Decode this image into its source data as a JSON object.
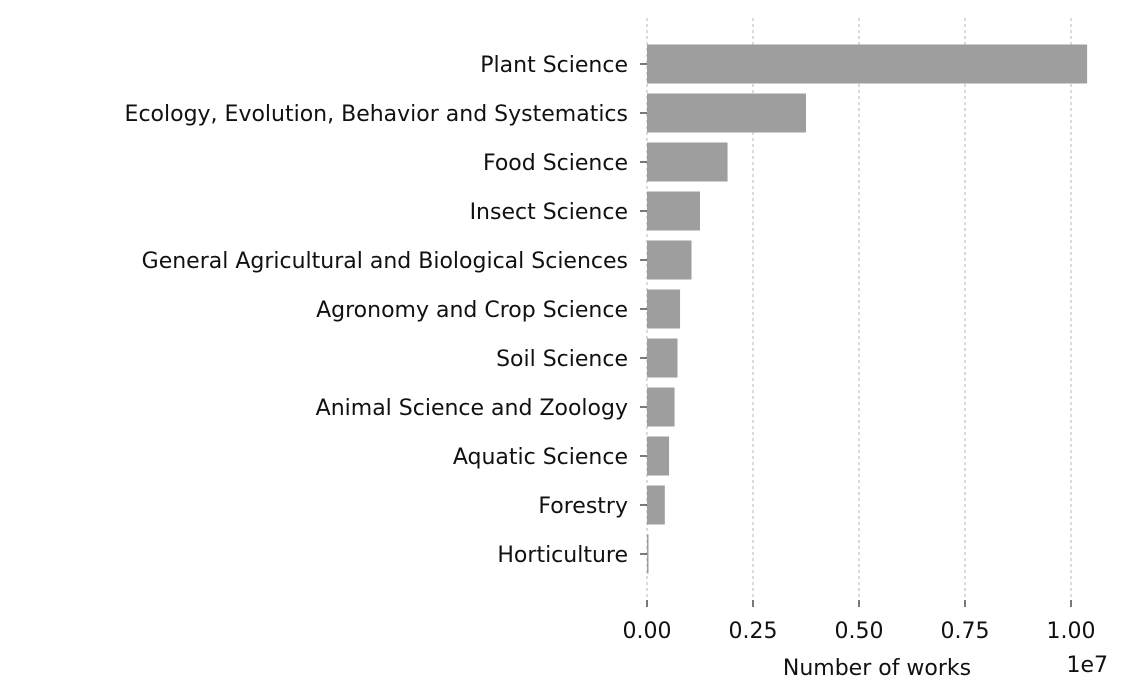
{
  "chart_data": {
    "type": "bar",
    "orientation": "horizontal",
    "categories": [
      "Plant Science",
      "Ecology, Evolution, Behavior and Systematics",
      "Food Science",
      "Insect Science",
      "General Agricultural and Biological Sciences",
      "Agronomy and Crop Science",
      "Soil Science",
      "Animal Science and Zoology",
      "Aquatic Science",
      "Forestry",
      "Horticulture"
    ],
    "values": [
      10380000,
      3750000,
      1900000,
      1250000,
      1050000,
      780000,
      720000,
      650000,
      520000,
      420000,
      30000
    ],
    "xlabel": "Number of works",
    "ylabel": "",
    "xlim": [
      0,
      10500000
    ],
    "x_ticks": [
      0,
      2500000,
      5000000,
      7500000,
      10000000
    ],
    "x_tick_labels": [
      "0.00",
      "0.25",
      "0.50",
      "0.75",
      "1.00"
    ],
    "x_offset_label": "1e7",
    "grid": "x-dashed",
    "bar_color": "#9e9e9e",
    "grid_color": "#b0b0b0"
  }
}
